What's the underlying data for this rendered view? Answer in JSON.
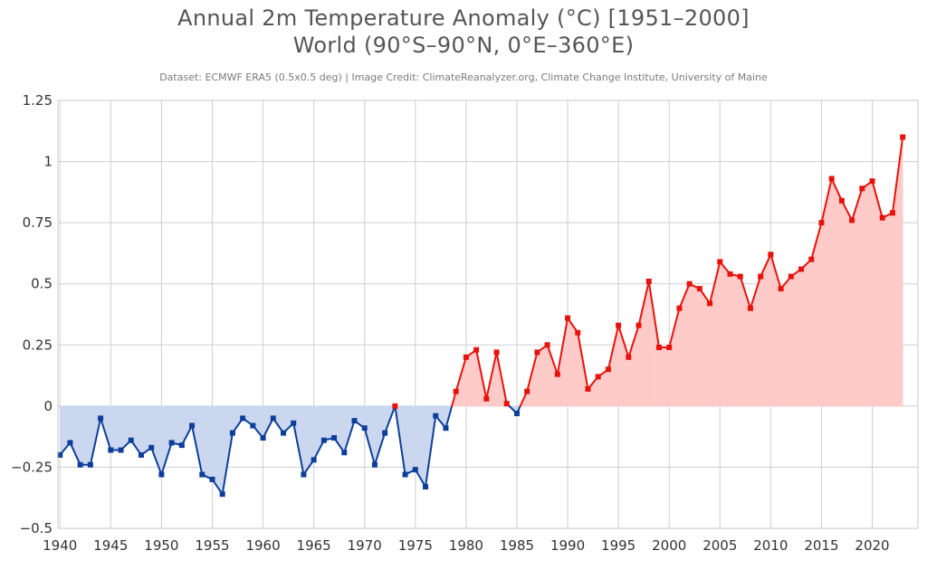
{
  "chart_data": {
    "type": "area",
    "title": "Annual 2m Temperature Anomaly (°C) [1951–2000]",
    "subtitle": "World (90°S–90°N, 0°E–360°E)",
    "credit": "Dataset: ECMWF ERA5 (0.5x0.5 deg) | Image Credit: ClimateReanalyzer.org, Climate Change Institute, University of Maine",
    "xlabel": "",
    "ylabel": "",
    "xlim": [
      1939.8,
      2024.5
    ],
    "ylim": [
      -0.5,
      1.25
    ],
    "grid": true,
    "legend": "none",
    "colors": {
      "negative_line": "#0c3f9a",
      "negative_fill": "#cbd7ef",
      "positive_line": "#e8120c",
      "positive_fill": "#fecbc9",
      "grid": "#cfcfcf"
    },
    "x_ticks": [
      1940,
      1945,
      1950,
      1955,
      1960,
      1965,
      1970,
      1975,
      1980,
      1985,
      1990,
      1995,
      2000,
      2005,
      2010,
      2015,
      2020
    ],
    "y_ticks": [
      {
        "value": -0.5,
        "label": "−0.5"
      },
      {
        "value": -0.25,
        "label": "−0.25"
      },
      {
        "value": 0,
        "label": "0"
      },
      {
        "value": 0.25,
        "label": "0.25"
      },
      {
        "value": 0.5,
        "label": "0.5"
      },
      {
        "value": 0.75,
        "label": "0.75"
      },
      {
        "value": 1,
        "label": "1"
      },
      {
        "value": 1.25,
        "label": "1.25"
      }
    ],
    "x": [
      1940,
      1941,
      1942,
      1943,
      1944,
      1945,
      1946,
      1947,
      1948,
      1949,
      1950,
      1951,
      1952,
      1953,
      1954,
      1955,
      1956,
      1957,
      1958,
      1959,
      1960,
      1961,
      1962,
      1963,
      1964,
      1965,
      1966,
      1967,
      1968,
      1969,
      1970,
      1971,
      1972,
      1973,
      1974,
      1975,
      1976,
      1977,
      1978,
      1979,
      1980,
      1981,
      1982,
      1983,
      1984,
      1985,
      1986,
      1987,
      1988,
      1989,
      1990,
      1991,
      1992,
      1993,
      1994,
      1995,
      1996,
      1997,
      1998,
      1999,
      2000,
      2001,
      2002,
      2003,
      2004,
      2005,
      2006,
      2007,
      2008,
      2009,
      2010,
      2011,
      2012,
      2013,
      2014,
      2015,
      2016,
      2017,
      2018,
      2019,
      2020,
      2021,
      2022,
      2023
    ],
    "y": [
      -0.2,
      -0.15,
      -0.24,
      -0.24,
      -0.05,
      -0.18,
      -0.18,
      -0.14,
      -0.2,
      -0.17,
      -0.28,
      -0.15,
      -0.16,
      -0.08,
      -0.28,
      -0.3,
      -0.36,
      -0.11,
      -0.05,
      -0.08,
      -0.13,
      -0.05,
      -0.11,
      -0.07,
      -0.28,
      -0.22,
      -0.14,
      -0.13,
      -0.19,
      -0.06,
      -0.09,
      -0.24,
      -0.11,
      0.0,
      -0.28,
      -0.26,
      -0.33,
      -0.04,
      -0.09,
      0.06,
      0.2,
      0.23,
      0.03,
      0.22,
      0.01,
      -0.03,
      0.06,
      0.22,
      0.25,
      0.13,
      0.36,
      0.3,
      0.07,
      0.12,
      0.15,
      0.33,
      0.2,
      0.33,
      0.51,
      0.24,
      0.24,
      0.4,
      0.5,
      0.48,
      0.42,
      0.59,
      0.54,
      0.53,
      0.4,
      0.53,
      0.62,
      0.48,
      0.53,
      0.56,
      0.6,
      0.75,
      0.93,
      0.84,
      0.76,
      0.89,
      0.92,
      0.77,
      0.79,
      1.1
    ]
  }
}
